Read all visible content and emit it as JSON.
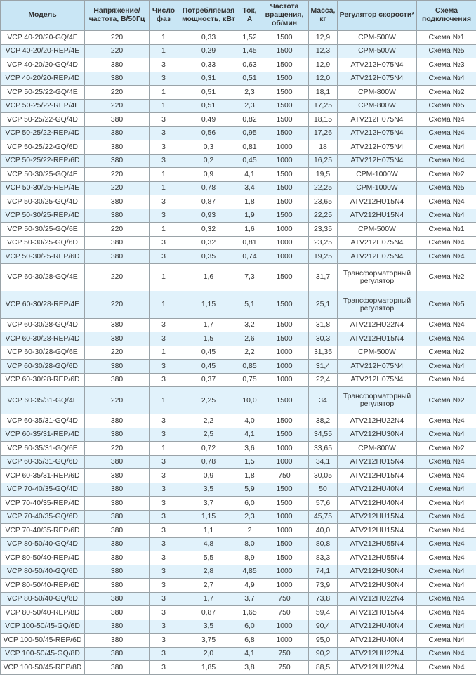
{
  "headers": [
    "Модель",
    "Напряжение/ частота, В/50Гц",
    "Число фаз",
    "Потребляемая мощность, кВт",
    "Ток, А",
    "Частота вращения, об/мин",
    "Масса, кг",
    "Регулятор скорости*",
    "Схема подключения"
  ],
  "colors": {
    "header_bg": "#c9e6f5",
    "shaded_row_bg": "#e1f2fb",
    "border": "#9aa3a8"
  },
  "rows": [
    {
      "cells": [
        "VCP 40-20/20-GQ/4E",
        "220",
        "1",
        "0,33",
        "1,52",
        "1500",
        "12,9",
        "CPM-500W",
        "Схема №1"
      ],
      "shaded": false
    },
    {
      "cells": [
        "VCP 40-20/20-REP/4E",
        "220",
        "1",
        "0,29",
        "1,45",
        "1500",
        "12,3",
        "CPM-500W",
        "Схема №5"
      ],
      "shaded": true
    },
    {
      "cells": [
        "VCP 40-20/20-GQ/4D",
        "380",
        "3",
        "0,33",
        "0,63",
        "1500",
        "12,9",
        "ATV212H075N4",
        "Схема №3"
      ],
      "shaded": false
    },
    {
      "cells": [
        "VCP 40-20/20-REP/4D",
        "380",
        "3",
        "0,31",
        "0,51",
        "1500",
        "12,0",
        "ATV212H075N4",
        "Схема №4"
      ],
      "shaded": true
    },
    {
      "cells": [
        "VCP 50-25/22-GQ/4E",
        "220",
        "1",
        "0,51",
        "2,3",
        "1500",
        "18,1",
        "CPM-800W",
        "Схема №2"
      ],
      "shaded": false
    },
    {
      "cells": [
        "VCP 50-25/22-REP/4E",
        "220",
        "1",
        "0,51",
        "2,3",
        "1500",
        "17,25",
        "CPM-800W",
        "Схема №5"
      ],
      "shaded": true
    },
    {
      "cells": [
        "VCP 50-25/22-GQ/4D",
        "380",
        "3",
        "0,49",
        "0,82",
        "1500",
        "18,15",
        "ATV212H075N4",
        "Схема №4"
      ],
      "shaded": false
    },
    {
      "cells": [
        "VCP 50-25/22-REP/4D",
        "380",
        "3",
        "0,56",
        "0,95",
        "1500",
        "17,26",
        "ATV212H075N4",
        "Схема №4"
      ],
      "shaded": true
    },
    {
      "cells": [
        "VCP 50-25/22-GQ/6D",
        "380",
        "3",
        "0,3",
        "0,81",
        "1000",
        "18",
        "ATV212H075N4",
        "Схема №4"
      ],
      "shaded": false
    },
    {
      "cells": [
        "VCP 50-25/22-REP/6D",
        "380",
        "3",
        "0,2",
        "0,45",
        "1000",
        "16,25",
        "ATV212H075N4",
        "Схема №4"
      ],
      "shaded": true
    },
    {
      "cells": [
        "VCP 50-30/25-GQ/4E",
        "220",
        "1",
        "0,9",
        "4,1",
        "1500",
        "19,5",
        "CPM-1000W",
        "Схема №2"
      ],
      "shaded": false
    },
    {
      "cells": [
        "VCP 50-30/25-REP/4E",
        "220",
        "1",
        "0,78",
        "3,4",
        "1500",
        "22,25",
        "CPM-1000W",
        "Схема №5"
      ],
      "shaded": true
    },
    {
      "cells": [
        "VCP 50-30/25-GQ/4D",
        "380",
        "3",
        "0,87",
        "1,8",
        "1500",
        "23,65",
        "ATV212HU15N4",
        "Схема №4"
      ],
      "shaded": false
    },
    {
      "cells": [
        "VCP 50-30/25-REP/4D",
        "380",
        "3",
        "0,93",
        "1,9",
        "1500",
        "22,25",
        "ATV212HU15N4",
        "Схема №4"
      ],
      "shaded": true
    },
    {
      "cells": [
        "VCP 50-30/25-GQ/6E",
        "220",
        "1",
        "0,32",
        "1,6",
        "1000",
        "23,35",
        "CPM-500W",
        "Схема №1"
      ],
      "shaded": false
    },
    {
      "cells": [
        "VCP 50-30/25-GQ/6D",
        "380",
        "3",
        "0,32",
        "0,81",
        "1000",
        "23,25",
        "ATV212H075N4",
        "Схема №4"
      ],
      "shaded": false
    },
    {
      "cells": [
        "VCP 50-30/25-REP/6D",
        "380",
        "3",
        "0,35",
        "0,74",
        "1000",
        "19,25",
        "ATV212H075N4",
        "Схема №4"
      ],
      "shaded": true
    },
    {
      "cells": [
        "VCP 60-30/28-GQ/4E",
        "220",
        "1",
        "1,6",
        "7,3",
        "1500",
        "31,7",
        "Трансформаторный регулятор",
        "Схема №2"
      ],
      "shaded": false,
      "tall": true
    },
    {
      "cells": [
        "VCP 60-30/28-REP/4E",
        "220",
        "1",
        "1,15",
        "5,1",
        "1500",
        "25,1",
        "Трансформаторный регулятор",
        "Схема №5"
      ],
      "shaded": true,
      "tall": true
    },
    {
      "cells": [
        "VCP 60-30/28-GQ/4D",
        "380",
        "3",
        "1,7",
        "3,2",
        "1500",
        "31,8",
        "ATV212HU22N4",
        "Схема №4"
      ],
      "shaded": false
    },
    {
      "cells": [
        "VCP 60-30/28-REP/4D",
        "380",
        "3",
        "1,5",
        "2,6",
        "1500",
        "30,3",
        "ATV212HU15N4",
        "Схема №4"
      ],
      "shaded": true
    },
    {
      "cells": [
        "VCP 60-30/28-GQ/6E",
        "220",
        "1",
        "0,45",
        "2,2",
        "1000",
        "31,35",
        "CPM-500W",
        "Схема №2"
      ],
      "shaded": false
    },
    {
      "cells": [
        "VCP 60-30/28-GQ/6D",
        "380",
        "3",
        "0,45",
        "0,85",
        "1000",
        "31,4",
        "ATV212H075N4",
        "Схема №4"
      ],
      "shaded": true
    },
    {
      "cells": [
        "VCP 60-30/28-REP/6D",
        "380",
        "3",
        "0,37",
        "0,75",
        "1000",
        "22,4",
        "ATV212H075N4",
        "Схема №4"
      ],
      "shaded": false
    },
    {
      "cells": [
        "VCP 60-35/31-GQ/4E",
        "220",
        "1",
        "2,25",
        "10,0",
        "1500",
        "34",
        "Трансформаторный регулятор",
        "Схема №2"
      ],
      "shaded": true,
      "tall": true
    },
    {
      "cells": [
        "VCP 60-35/31-GQ/4D",
        "380",
        "3",
        "2,2",
        "4,0",
        "1500",
        "38,2",
        "ATV212HU22N4",
        "Схема №4"
      ],
      "shaded": false
    },
    {
      "cells": [
        "VCP 60-35/31-REP/4D",
        "380",
        "3",
        "2,5",
        "4,1",
        "1500",
        "34,55",
        "ATV212HU30N4",
        "Схема №4"
      ],
      "shaded": true
    },
    {
      "cells": [
        "VCP 60-35/31-GQ/6E",
        "220",
        "1",
        "0,72",
        "3,6",
        "1000",
        "33,65",
        "CPM-800W",
        "Схема №2"
      ],
      "shaded": false
    },
    {
      "cells": [
        "VCP 60-35/31-GQ/6D",
        "380",
        "3",
        "0,78",
        "1,5",
        "1000",
        "34,1",
        "ATV212HU15N4",
        "Схема №4"
      ],
      "shaded": true
    },
    {
      "cells": [
        "VCP 60-35/31-REP/6D",
        "380",
        "3",
        "0,9",
        "1,8",
        "750",
        "30,05",
        "ATV212HU15N4",
        "Схема №4"
      ],
      "shaded": false
    },
    {
      "cells": [
        "VCP 70-40/35-GQ/4D",
        "380",
        "3",
        "3,5",
        "5,9",
        "1500",
        "50",
        "ATV212HU40N4",
        "Схема №4"
      ],
      "shaded": true
    },
    {
      "cells": [
        "VCP 70-40/35-REP/4D",
        "380",
        "3",
        "3,7",
        "6,0",
        "1500",
        "57,6",
        "ATV212HU40N4",
        "Схема №4"
      ],
      "shaded": false
    },
    {
      "cells": [
        "VCP 70-40/35-GQ/6D",
        "380",
        "3",
        "1,15",
        "2,3",
        "1000",
        "45,75",
        "ATV212HU15N4",
        "Схема №4"
      ],
      "shaded": true
    },
    {
      "cells": [
        "VCP 70-40/35-REP/6D",
        "380",
        "3",
        "1,1",
        "2",
        "1000",
        "40,0",
        "ATV212HU15N4",
        "Схема №4"
      ],
      "shaded": false
    },
    {
      "cells": [
        "VCP 80-50/40-GQ/4D",
        "380",
        "3",
        "4,8",
        "8,0",
        "1500",
        "80,8",
        "ATV212HU55N4",
        "Схема №4"
      ],
      "shaded": true
    },
    {
      "cells": [
        "VCP 80-50/40-REP/4D",
        "380",
        "3",
        "5,5",
        "8,9",
        "1500",
        "83,3",
        "ATV212HU55N4",
        "Схема №4"
      ],
      "shaded": false
    },
    {
      "cells": [
        "VCP 80-50/40-GQ/6D",
        "380",
        "3",
        "2,8",
        "4,85",
        "1000",
        "74,1",
        "ATV212HU30N4",
        "Схема №4"
      ],
      "shaded": true
    },
    {
      "cells": [
        "VCP 80-50/40-REP/6D",
        "380",
        "3",
        "2,7",
        "4,9",
        "1000",
        "73,9",
        "ATV212HU30N4",
        "Схема №4"
      ],
      "shaded": false
    },
    {
      "cells": [
        "VCP 80-50/40-GQ/8D",
        "380",
        "3",
        "1,7",
        "3,7",
        "750",
        "73,8",
        "ATV212HU22N4",
        "Схема №4"
      ],
      "shaded": true
    },
    {
      "cells": [
        "VCP 80-50/40-REP/8D",
        "380",
        "3",
        "0,87",
        "1,65",
        "750",
        "59,4",
        "ATV212HU15N4",
        "Схема №4"
      ],
      "shaded": false
    },
    {
      "cells": [
        "VCP 100-50/45-GQ/6D",
        "380",
        "3",
        "3,5",
        "6,0",
        "1000",
        "90,4",
        "ATV212HU40N4",
        "Схема №4"
      ],
      "shaded": true
    },
    {
      "cells": [
        "VCP 100-50/45-REP/6D",
        "380",
        "3",
        "3,75",
        "6,8",
        "1000",
        "95,0",
        "ATV212HU40N4",
        "Схема №4"
      ],
      "shaded": false
    },
    {
      "cells": [
        "VCP 100-50/45-GQ/8D",
        "380",
        "3",
        "2,0",
        "4,1",
        "750",
        "90,2",
        "ATV212HU22N4",
        "Схема №4"
      ],
      "shaded": true
    },
    {
      "cells": [
        "VCP 100-50/45-REP/8D",
        "380",
        "3",
        "1,85",
        "3,8",
        "750",
        "88,5",
        "ATV212HU22N4",
        "Схема №4"
      ],
      "shaded": false
    }
  ]
}
